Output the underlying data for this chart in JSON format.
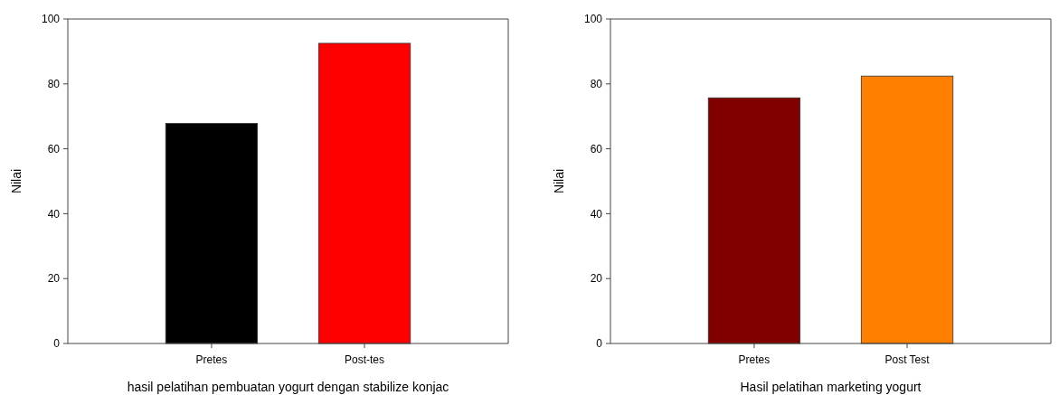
{
  "chart_data": [
    {
      "type": "bar",
      "categories": [
        "Pretes",
        "Post-tes"
      ],
      "values": [
        67.8,
        92.5
      ],
      "colors": [
        "#000000",
        "#ff0000"
      ],
      "xlabel": "hasil pelatihan pembuatan yogurt dengan stabilize konjac",
      "ylabel": "Nilai",
      "ylim": [
        0,
        100
      ],
      "yticks": [
        0,
        20,
        40,
        60,
        80,
        100
      ],
      "grid": false
    },
    {
      "type": "bar",
      "categories": [
        "Pretes",
        "Post Test"
      ],
      "values": [
        75.7,
        82.4
      ],
      "colors": [
        "#800000",
        "#ff8000"
      ],
      "xlabel": "Hasil pelatihan marketing yogurt",
      "ylabel": "Nilai",
      "ylim": [
        0,
        100
      ],
      "yticks": [
        0,
        20,
        40,
        60,
        80,
        100
      ],
      "grid": false
    }
  ]
}
